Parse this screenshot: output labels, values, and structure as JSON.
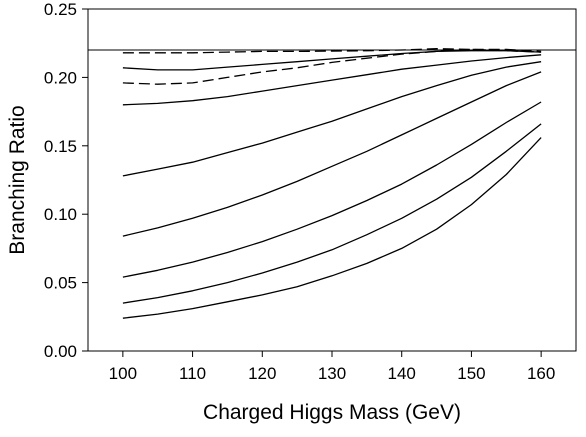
{
  "chart_data": {
    "type": "line",
    "title": "",
    "xlabel": "Charged Higgs Mass (GeV)",
    "ylabel": "Branching Ratio",
    "xlim": [
      95,
      165
    ],
    "ylim": [
      0.0,
      0.25
    ],
    "xticks": [
      100,
      110,
      120,
      130,
      140,
      150,
      160
    ],
    "yticks": [
      0.0,
      0.05,
      0.1,
      0.15,
      0.2,
      0.25
    ],
    "xtick_labels": [
      "100",
      "110",
      "120",
      "130",
      "140",
      "150",
      "160"
    ],
    "ytick_labels": [
      "0.00",
      "0.05",
      "0.10",
      "0.15",
      "0.20",
      "0.25"
    ],
    "grid": false,
    "legend": "none",
    "reference_line": {
      "y": 0.22,
      "style": "solid"
    },
    "x": [
      100,
      105,
      110,
      115,
      120,
      125,
      130,
      135,
      140,
      145,
      150,
      155,
      160
    ],
    "series": [
      {
        "style": "dashed",
        "values": [
          0.218,
          0.218,
          0.218,
          0.2185,
          0.219,
          0.219,
          0.2192,
          0.2195,
          0.22,
          0.221,
          0.2205,
          0.2195,
          0.2185
        ]
      },
      {
        "style": "dashed",
        "values": [
          0.196,
          0.195,
          0.196,
          0.2,
          0.204,
          0.207,
          0.211,
          0.214,
          0.217,
          0.219,
          0.2205,
          0.2205,
          0.219
        ]
      },
      {
        "style": "solid",
        "values": [
          0.207,
          0.2055,
          0.2055,
          0.2075,
          0.2095,
          0.2115,
          0.2135,
          0.2155,
          0.2175,
          0.219,
          0.2195,
          0.2195,
          0.2185
        ]
      },
      {
        "style": "solid",
        "values": [
          0.18,
          0.181,
          0.183,
          0.186,
          0.19,
          0.194,
          0.198,
          0.202,
          0.206,
          0.209,
          0.212,
          0.2145,
          0.2165
        ]
      },
      {
        "style": "solid",
        "values": [
          0.128,
          0.133,
          0.138,
          0.145,
          0.152,
          0.16,
          0.168,
          0.177,
          0.186,
          0.194,
          0.2015,
          0.2075,
          0.2115
        ]
      },
      {
        "style": "solid",
        "values": [
          0.084,
          0.09,
          0.097,
          0.105,
          0.114,
          0.124,
          0.135,
          0.146,
          0.158,
          0.17,
          0.182,
          0.194,
          0.204
        ]
      },
      {
        "style": "solid",
        "values": [
          0.054,
          0.059,
          0.065,
          0.072,
          0.08,
          0.089,
          0.099,
          0.11,
          0.122,
          0.136,
          0.151,
          0.167,
          0.182
        ]
      },
      {
        "style": "solid",
        "values": [
          0.035,
          0.039,
          0.044,
          0.05,
          0.057,
          0.065,
          0.074,
          0.085,
          0.097,
          0.111,
          0.127,
          0.146,
          0.166
        ]
      },
      {
        "style": "solid",
        "values": [
          0.024,
          0.027,
          0.031,
          0.036,
          0.041,
          0.047,
          0.055,
          0.064,
          0.075,
          0.089,
          0.107,
          0.129,
          0.156
        ]
      }
    ]
  }
}
